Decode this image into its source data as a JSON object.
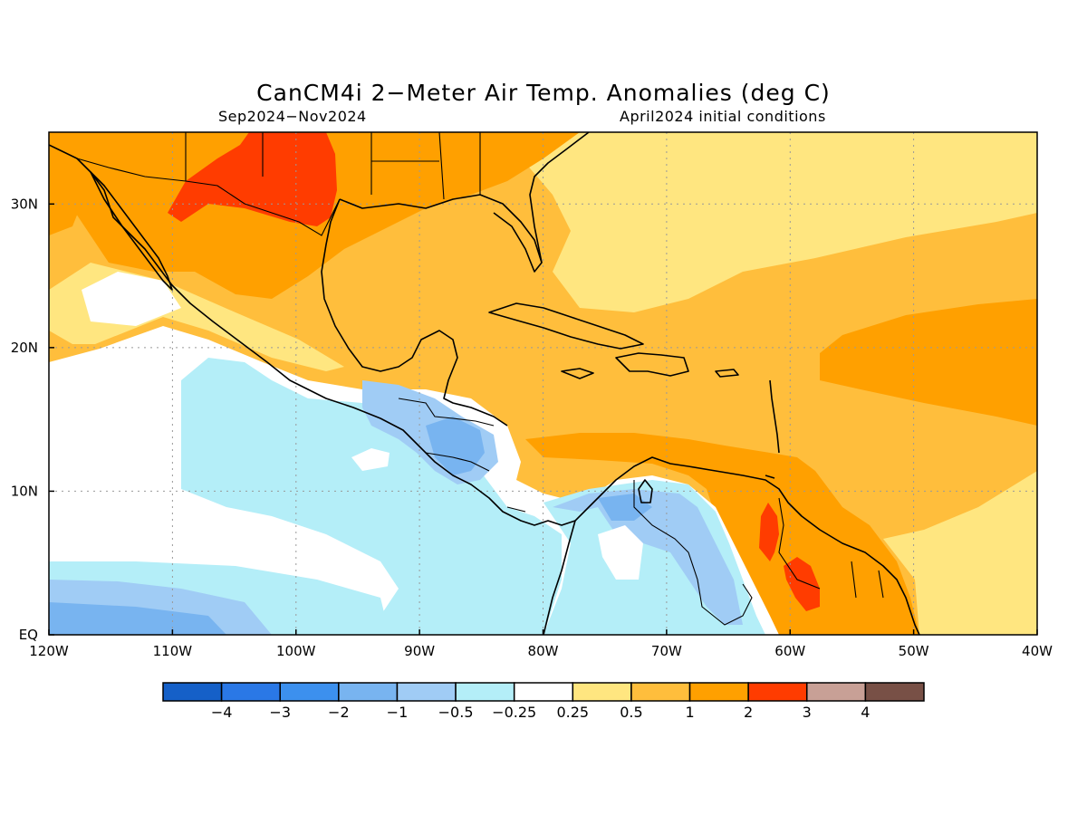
{
  "figure": {
    "title": "CanCM4i 2−Meter Air Temp. Anomalies (deg C)",
    "period": "Sep2024−Nov2024",
    "init": "April2024 initial conditions"
  },
  "map": {
    "lon_ticks": [
      "120W",
      "110W",
      "100W",
      "90W",
      "80W",
      "70W",
      "60W",
      "50W",
      "40W"
    ],
    "lat_ticks": [
      "EQ",
      "10N",
      "20N",
      "30N"
    ],
    "lon_range": [
      -120,
      -40
    ],
    "lat_range": [
      0,
      35
    ],
    "grid": "dotted"
  },
  "colorbar": {
    "labels": [
      "−4",
      "−3",
      "−2",
      "−1",
      "−0.5",
      "−0.25",
      "0.25",
      "0.5",
      "1",
      "2",
      "3",
      "4"
    ],
    "colors": [
      "#1560c8",
      "#2a78e6",
      "#3c90ee",
      "#78b4f0",
      "#a0ccf5",
      "#b4eef8",
      "#ffffff",
      "#ffe680",
      "#ffbe3c",
      "#ffa000",
      "#ff3c00",
      "#c8a096",
      "#785046"
    ]
  }
}
